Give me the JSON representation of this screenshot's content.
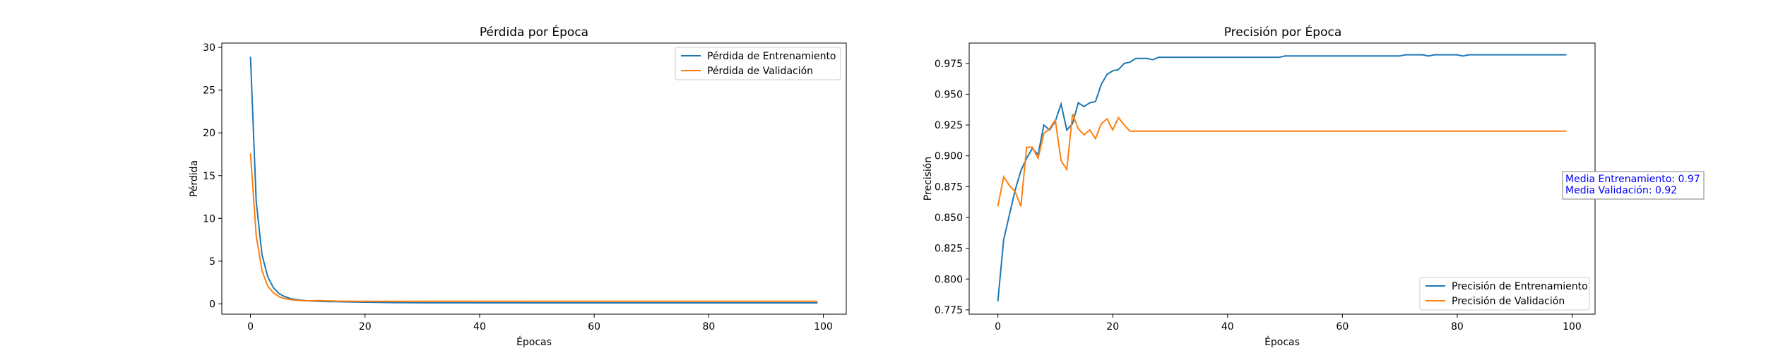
{
  "chart_data": [
    {
      "type": "line",
      "title": "Pérdida por Época",
      "xlabel": "Épocas",
      "ylabel": "Pérdida",
      "xlim": [
        -5,
        104
      ],
      "ylim": [
        -1.2,
        30.5
      ],
      "xticks": [
        0,
        20,
        40,
        60,
        80,
        100
      ],
      "yticks": [
        0,
        5,
        10,
        15,
        20,
        25,
        30
      ],
      "ytick_decimals": 0,
      "grid": false,
      "legend": "top-right",
      "series": [
        {
          "name": "Pérdida de Entrenamiento",
          "color": "#1f77b4",
          "points": [
            [
              0,
              28.9
            ],
            [
              1,
              12.0
            ],
            [
              2,
              5.8
            ],
            [
              3,
              3.2
            ],
            [
              4,
              1.9
            ],
            [
              5,
              1.2
            ],
            [
              6,
              0.85
            ],
            [
              7,
              0.62
            ],
            [
              8,
              0.5
            ],
            [
              9,
              0.42
            ],
            [
              10,
              0.36
            ],
            [
              11,
              0.33
            ],
            [
              12,
              0.3
            ],
            [
              13,
              0.28
            ],
            [
              14,
              0.27
            ],
            [
              15,
              0.26
            ],
            [
              17,
              0.24
            ],
            [
              20,
              0.2
            ],
            [
              25,
              0.15
            ],
            [
              30,
              0.13
            ],
            [
              50,
              0.12
            ],
            [
              99,
              0.12
            ]
          ]
        },
        {
          "name": "Pérdida de Validación",
          "color": "#ff7f0e",
          "points": [
            [
              0,
              17.6
            ],
            [
              1,
              8.0
            ],
            [
              2,
              3.9
            ],
            [
              3,
              2.1
            ],
            [
              4,
              1.3
            ],
            [
              5,
              0.85
            ],
            [
              6,
              0.62
            ],
            [
              7,
              0.5
            ],
            [
              8,
              0.42
            ],
            [
              9,
              0.38
            ],
            [
              10,
              0.36
            ],
            [
              11,
              0.38
            ],
            [
              12,
              0.4
            ],
            [
              13,
              0.37
            ],
            [
              14,
              0.35
            ],
            [
              15,
              0.33
            ],
            [
              17,
              0.32
            ],
            [
              20,
              0.3
            ],
            [
              30,
              0.3
            ],
            [
              99,
              0.3
            ]
          ]
        }
      ]
    },
    {
      "type": "line",
      "title": "Precisión por Época",
      "xlabel": "Épocas",
      "ylabel": "Precisión",
      "xlim": [
        -5,
        104
      ],
      "ylim": [
        0.7715,
        0.9915
      ],
      "xticks": [
        0,
        20,
        40,
        60,
        80,
        100
      ],
      "yticks": [
        0.775,
        0.8,
        0.825,
        0.85,
        0.875,
        0.9,
        0.925,
        0.95,
        0.975
      ],
      "ytick_decimals": 3,
      "grid": false,
      "legend": "bottom-right",
      "series": [
        {
          "name": "Precisión de Entrenamiento",
          "color": "#1f77b4",
          "points": [
            [
              0,
              0.782
            ],
            [
              1,
              0.832
            ],
            [
              2,
              0.852
            ],
            [
              3,
              0.872
            ],
            [
              4,
              0.888
            ],
            [
              5,
              0.898
            ],
            [
              6,
              0.906
            ],
            [
              7,
              0.901
            ],
            [
              8,
              0.925
            ],
            [
              9,
              0.921
            ],
            [
              10,
              0.928
            ],
            [
              11,
              0.942
            ],
            [
              12,
              0.921
            ],
            [
              13,
              0.926
            ],
            [
              14,
              0.943
            ],
            [
              15,
              0.94
            ],
            [
              16,
              0.943
            ],
            [
              17,
              0.944
            ],
            [
              18,
              0.958
            ],
            [
              19,
              0.966
            ],
            [
              20,
              0.969
            ],
            [
              21,
              0.97
            ],
            [
              22,
              0.975
            ],
            [
              23,
              0.976
            ],
            [
              24,
              0.979
            ],
            [
              25,
              0.979
            ],
            [
              26,
              0.979
            ],
            [
              27,
              0.978
            ],
            [
              28,
              0.98
            ],
            [
              30,
              0.98
            ],
            [
              40,
              0.98
            ],
            [
              49,
              0.98
            ],
            [
              50,
              0.981
            ],
            [
              60,
              0.981
            ],
            [
              70,
              0.981
            ],
            [
              71,
              0.982
            ],
            [
              74,
              0.982
            ],
            [
              75,
              0.981
            ],
            [
              76,
              0.982
            ],
            [
              80,
              0.982
            ],
            [
              81,
              0.981
            ],
            [
              82,
              0.982
            ],
            [
              99,
              0.982
            ]
          ]
        },
        {
          "name": "Precisión de Validación",
          "color": "#ff7f0e",
          "points": [
            [
              0,
              0.859
            ],
            [
              1,
              0.883
            ],
            [
              2,
              0.876
            ],
            [
              3,
              0.871
            ],
            [
              4,
              0.859
            ],
            [
              5,
              0.907
            ],
            [
              6,
              0.907
            ],
            [
              7,
              0.898
            ],
            [
              8,
              0.918
            ],
            [
              9,
              0.922
            ],
            [
              10,
              0.929
            ],
            [
              11,
              0.896
            ],
            [
              12,
              0.889
            ],
            [
              13,
              0.934
            ],
            [
              14,
              0.922
            ],
            [
              15,
              0.917
            ],
            [
              16,
              0.921
            ],
            [
              17,
              0.914
            ],
            [
              18,
              0.926
            ],
            [
              19,
              0.93
            ],
            [
              20,
              0.921
            ],
            [
              21,
              0.931
            ],
            [
              22,
              0.925
            ],
            [
              23,
              0.92
            ],
            [
              24,
              0.92
            ],
            [
              30,
              0.92
            ],
            [
              99,
              0.92
            ]
          ]
        }
      ],
      "annotation": {
        "lines": [
          "Media Entrenamiento: 0.97",
          "Media Validación: 0.92"
        ],
        "color": "#0000ff"
      }
    }
  ]
}
